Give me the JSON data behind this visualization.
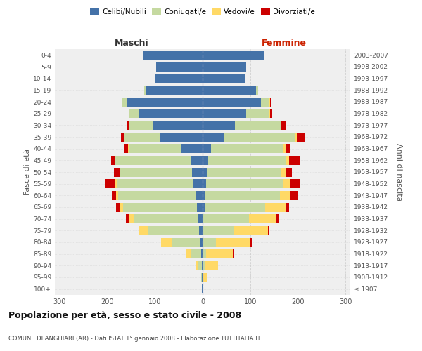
{
  "age_groups": [
    "100+",
    "95-99",
    "90-94",
    "85-89",
    "80-84",
    "75-79",
    "70-74",
    "65-69",
    "60-64",
    "55-59",
    "50-54",
    "45-49",
    "40-44",
    "35-39",
    "30-34",
    "25-29",
    "20-24",
    "15-19",
    "10-14",
    "5-9",
    "0-4"
  ],
  "birth_years": [
    "≤ 1907",
    "1908-1912",
    "1913-1917",
    "1918-1922",
    "1923-1927",
    "1928-1932",
    "1933-1937",
    "1938-1942",
    "1943-1947",
    "1948-1952",
    "1953-1957",
    "1958-1962",
    "1963-1967",
    "1968-1972",
    "1973-1977",
    "1978-1982",
    "1983-1987",
    "1988-1992",
    "1993-1997",
    "1998-2002",
    "2003-2007"
  ],
  "males": {
    "celibi": [
      1,
      1,
      2,
      3,
      5,
      8,
      10,
      12,
      15,
      20,
      22,
      25,
      45,
      90,
      105,
      135,
      160,
      120,
      100,
      98,
      125
    ],
    "coniugati": [
      1,
      2,
      8,
      20,
      60,
      105,
      135,
      155,
      162,
      160,
      150,
      158,
      110,
      75,
      50,
      18,
      8,
      2,
      0,
      0,
      0
    ],
    "vedovi": [
      0,
      0,
      5,
      12,
      22,
      20,
      8,
      5,
      4,
      3,
      2,
      1,
      1,
      1,
      0,
      0,
      0,
      0,
      0,
      0,
      0
    ],
    "divorziati": [
      0,
      0,
      0,
      0,
      0,
      0,
      8,
      10,
      10,
      20,
      12,
      8,
      8,
      5,
      5,
      2,
      1,
      0,
      0,
      0,
      0
    ]
  },
  "females": {
    "nubili": [
      0,
      0,
      0,
      0,
      0,
      0,
      2,
      4,
      5,
      7,
      10,
      12,
      18,
      45,
      68,
      92,
      122,
      112,
      88,
      92,
      128
    ],
    "coniugate": [
      0,
      1,
      4,
      8,
      28,
      65,
      95,
      128,
      158,
      162,
      155,
      162,
      152,
      150,
      96,
      48,
      18,
      4,
      0,
      0,
      0
    ],
    "vedove": [
      1,
      8,
      28,
      55,
      72,
      72,
      58,
      42,
      22,
      16,
      10,
      8,
      5,
      3,
      2,
      1,
      1,
      0,
      0,
      0,
      0
    ],
    "divorziate": [
      0,
      0,
      0,
      2,
      5,
      3,
      5,
      8,
      15,
      18,
      12,
      22,
      8,
      18,
      10,
      5,
      2,
      0,
      0,
      0,
      0
    ]
  },
  "colors": {
    "celibi": "#4472a8",
    "coniugati": "#c5d9a0",
    "vedovi": "#ffd966",
    "divorziati": "#cc0000"
  },
  "xlim": 310,
  "title": "Popolazione per età, sesso e stato civile - 2008",
  "subtitle": "COMUNE DI ANGHIARI (AR) - Dati ISTAT 1° gennaio 2008 - Elaborazione TUTTITALIA.IT",
  "ylabel_left": "Fasce di età",
  "ylabel_right": "Anni di nascita",
  "xlabel_left": "Maschi",
  "xlabel_right": "Femmine",
  "legend_labels": [
    "Celibi/Nubili",
    "Coniugati/e",
    "Vedovi/e",
    "Divorziati/e"
  ],
  "bg_color": "#efefef",
  "grid_color": "#cccccc"
}
